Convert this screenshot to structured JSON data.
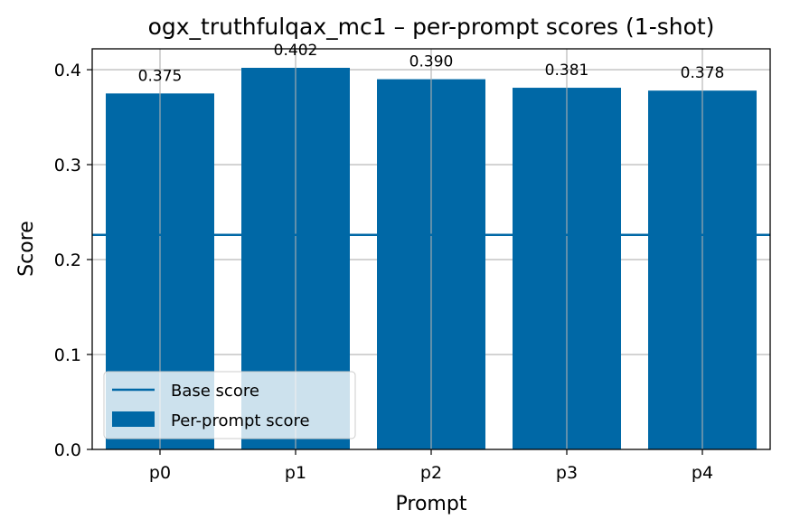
{
  "chart_data": {
    "type": "bar",
    "title": "ogx_truthfulqax_mc1 – per-prompt scores (1-shot)",
    "xlabel": "Prompt",
    "ylabel": "Score",
    "categories": [
      "p0",
      "p1",
      "p2",
      "p3",
      "p4"
    ],
    "series": [
      {
        "name": "Per-prompt score",
        "values": [
          0.375,
          0.402,
          0.39,
          0.381,
          0.378
        ]
      }
    ],
    "value_labels": [
      "0.375",
      "0.402",
      "0.390",
      "0.381",
      "0.378"
    ],
    "reference_line": {
      "name": "Base score",
      "value": 0.226
    },
    "yticks": [
      "0.0",
      "0.1",
      "0.2",
      "0.3",
      "0.4"
    ],
    "ylim": [
      0,
      0.422
    ],
    "grid": true,
    "legend_position": "lower-left",
    "colors": {
      "bar": "#0068a6",
      "base_line": "#0068a6",
      "grid": "#b0b0b0"
    }
  }
}
